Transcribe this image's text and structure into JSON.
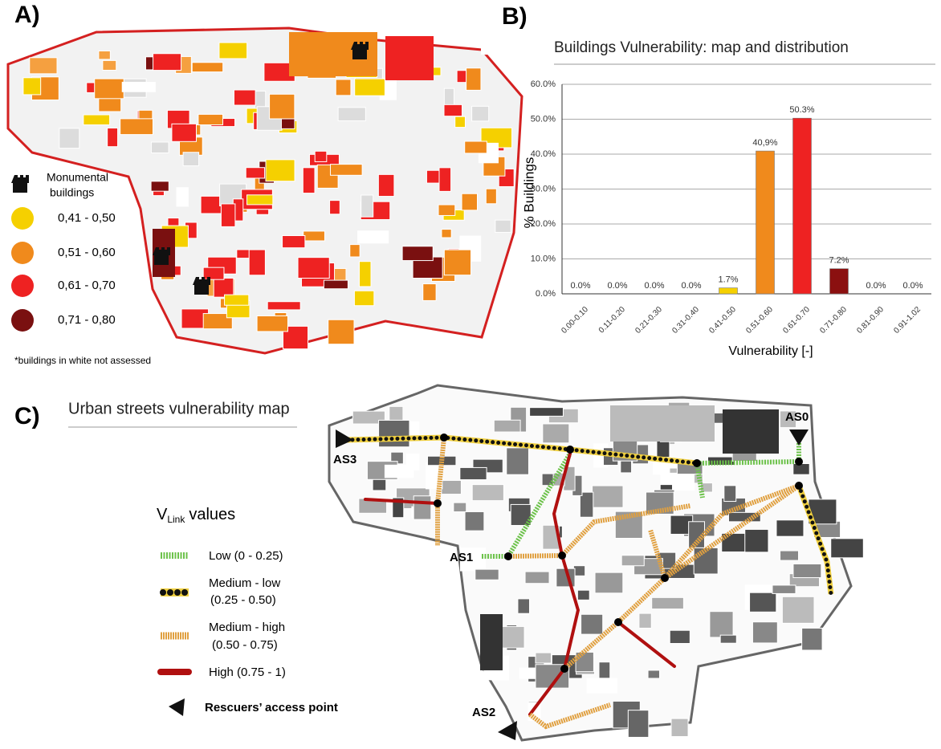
{
  "panels": {
    "a": "A)",
    "b": "B)",
    "c": "C)"
  },
  "map_a": {
    "legend": {
      "monumental": [
        "Monumental",
        "buildings"
      ],
      "classes": [
        "0,41 - 0,50",
        "0,51 - 0,60",
        "0,61 - 0,70",
        "0,71 - 0,80"
      ]
    },
    "footnote": "*buildings in white not assessed"
  },
  "chart_data": {
    "type": "bar",
    "title": "Buildings Vulnerability: map and distribution",
    "categories": [
      "0.00-0.10",
      "0.11-0.20",
      "0.21-0.30",
      "0.31-0.40",
      "0.41-0.50",
      "0.51-0.60",
      "0.61-0.70",
      "0.71-0.80",
      "0.81-0.90",
      "0.91-1.02"
    ],
    "values": [
      0,
      0,
      0,
      0,
      1.7,
      40.9,
      50.3,
      7.2,
      0,
      0
    ],
    "value_labels": [
      "0.0%",
      "0.0%",
      "0.0%",
      "0.0%",
      "1.7%",
      "40,9%",
      "50.3%",
      "7.2%",
      "0.0%",
      "0.0%"
    ],
    "colors": [
      "#f5d000",
      "#f5d000",
      "#f5d000",
      "#f5d000",
      "#f5d000",
      "#f08a1c",
      "#ee2222",
      "#8b1010",
      "#8b1010",
      "#8b1010"
    ],
    "xlabel": "Vulnerability  [-]",
    "ylabel": "%   Buildings",
    "ylim": [
      0,
      60
    ],
    "yticks": [
      {
        "value": 0,
        "label": "0.0%"
      },
      {
        "value": 10,
        "label": "10.0%"
      },
      {
        "value": 20,
        "label": "20.0%"
      },
      {
        "value": 30,
        "label": "30.0%"
      },
      {
        "value": 40,
        "label": "40.0%"
      },
      {
        "value": 50,
        "label": "50.0%"
      },
      {
        "value": 60,
        "label": "60.0%"
      }
    ],
    "grid": true
  },
  "map_c": {
    "title": "Urban streets vulnerability map",
    "legend": {
      "v": "V",
      "sub": "Link",
      "values": "values",
      "low": "Low (0 - 0.25)",
      "medlow": [
        "Medium - low",
        "(0.25 - 0.50)"
      ],
      "medhigh": [
        "Medium - high",
        "(0.50 - 0.75)"
      ],
      "high": "High (0.75 - 1)",
      "access": "Rescuers’ access point"
    },
    "access_points": [
      "AS0",
      "AS1",
      "AS2",
      "AS3"
    ]
  }
}
